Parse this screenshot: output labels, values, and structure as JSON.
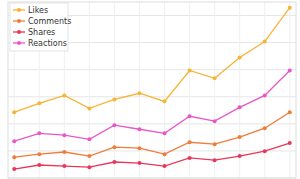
{
  "chart_data": {
    "type": "line",
    "x": [
      1,
      2,
      3,
      4,
      5,
      6,
      7,
      8,
      9,
      10,
      11,
      12
    ],
    "series": [
      {
        "name": "Likes",
        "color": "#f9b234",
        "values": [
          24.3,
          27.6,
          30.5,
          25.7,
          29,
          31.3,
          28.3,
          39.7,
          36.8,
          44.5,
          50.4,
          62.9
        ]
      },
      {
        "name": "Comments",
        "color": "#f07c3a",
        "values": [
          7.7,
          8.8,
          9.6,
          8.1,
          11.4,
          11,
          8.8,
          13.2,
          12.5,
          15.1,
          18.4,
          24.3
        ]
      },
      {
        "name": "Shares",
        "color": "#e8375a",
        "values": [
          3.3,
          4.8,
          4.4,
          4,
          5.9,
          5.5,
          4.4,
          7.4,
          6.6,
          8.1,
          9.9,
          12.9
        ]
      },
      {
        "name": "Reactions",
        "color": "#e956c9",
        "values": [
          13.6,
          16.5,
          15.8,
          14.3,
          19.5,
          18,
          16.5,
          22.8,
          21,
          26.1,
          30.5,
          39.7
        ]
      }
    ],
    "xlim": [
      0.75,
      12.25
    ],
    "xticks": [
      1,
      2,
      3,
      4,
      5,
      6,
      7,
      8,
      9,
      10,
      11,
      12
    ],
    "ylim": [
      0,
      65
    ],
    "yticks": [
      0,
      10,
      20,
      30,
      40,
      50,
      60
    ],
    "grid": true,
    "legend": "top-left",
    "marker": "circle",
    "tick_labels": false
  }
}
